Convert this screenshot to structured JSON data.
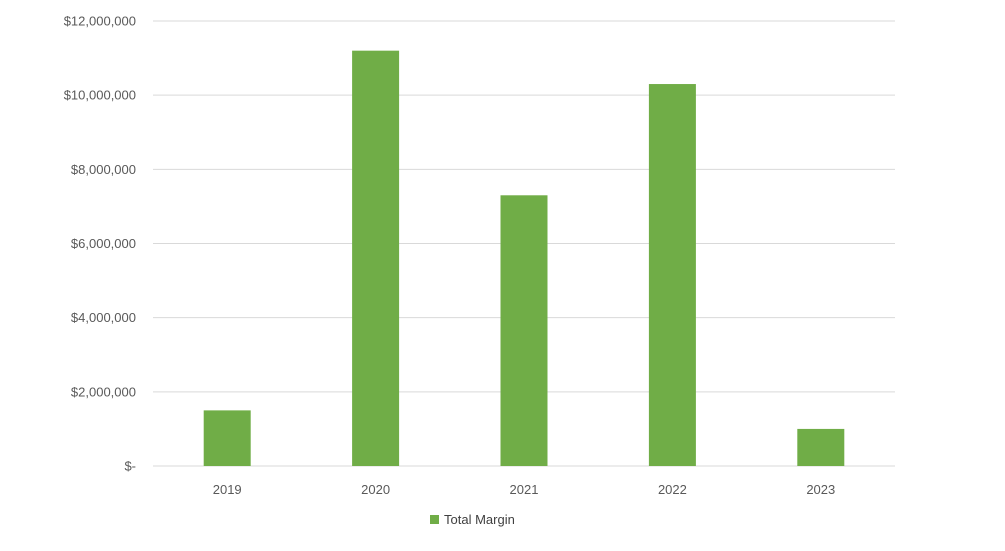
{
  "chart_data": {
    "type": "bar",
    "categories": [
      "2019",
      "2020",
      "2021",
      "2022",
      "2023"
    ],
    "series": [
      {
        "name": "Total Margin",
        "color": "#70AD47",
        "values": [
          1500000,
          11200000,
          7300000,
          10300000,
          1000000
        ]
      }
    ],
    "ylim": [
      0,
      12000000
    ],
    "y_ticks": [
      0,
      2000000,
      4000000,
      6000000,
      8000000,
      10000000,
      12000000
    ],
    "y_tick_labels": [
      "$-",
      "$2,000,000",
      "$4,000,000",
      "$6,000,000",
      "$8,000,000",
      "$10,000,000",
      "$12,000,000"
    ],
    "grid": true,
    "legend_position": "bottom",
    "gridline_color": "#D9D9D9",
    "title": "",
    "xlabel": "",
    "ylabel": ""
  }
}
